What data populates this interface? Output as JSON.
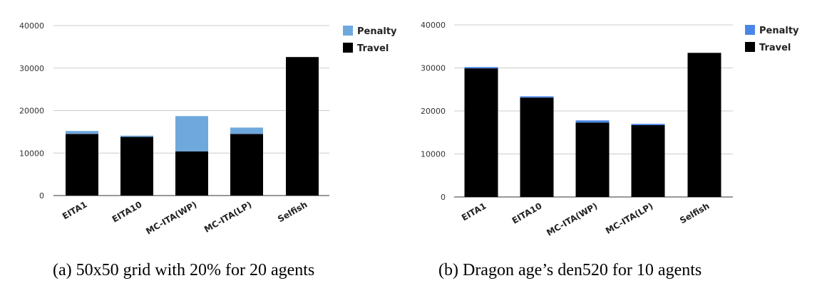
{
  "chart_data": [
    {
      "type": "bar",
      "stacked": true,
      "caption": "(a) 50x50 grid with 20% for 20 agents",
      "categories": [
        "EITA1",
        "EITA10",
        "MC-ITA(WP)",
        "MC-ITA(LP)",
        "Selfish"
      ],
      "series": [
        {
          "name": "Travel",
          "color": "#000000",
          "values": [
            14500,
            13800,
            10400,
            14500,
            32600
          ]
        },
        {
          "name": "Penalty",
          "color": "#6fa8dc",
          "values": [
            700,
            300,
            8300,
            1500,
            0
          ]
        }
      ],
      "yticks": [
        "0",
        "10000",
        "20000",
        "30000",
        "40000"
      ],
      "ylim": [
        0,
        40000
      ],
      "grid": true,
      "legend": "top-right"
    },
    {
      "type": "bar",
      "stacked": true,
      "caption": "(b) Dragon age’s den520 for 10 agents",
      "categories": [
        "EITA1",
        "EITA10",
        "MC-ITA(WP)",
        "MC-ITA(LP)",
        "Selfish"
      ],
      "series": [
        {
          "name": "Travel",
          "color": "#000000",
          "values": [
            29900,
            23100,
            17300,
            16700,
            33500
          ]
        },
        {
          "name": "Penalty",
          "color": "#4a86e8",
          "values": [
            300,
            300,
            500,
            300,
            0
          ]
        }
      ],
      "yticks": [
        "0",
        "10000",
        "20000",
        "30000",
        "40000"
      ],
      "ylim": [
        0,
        40000
      ],
      "grid": true,
      "legend": "top-right"
    }
  ]
}
